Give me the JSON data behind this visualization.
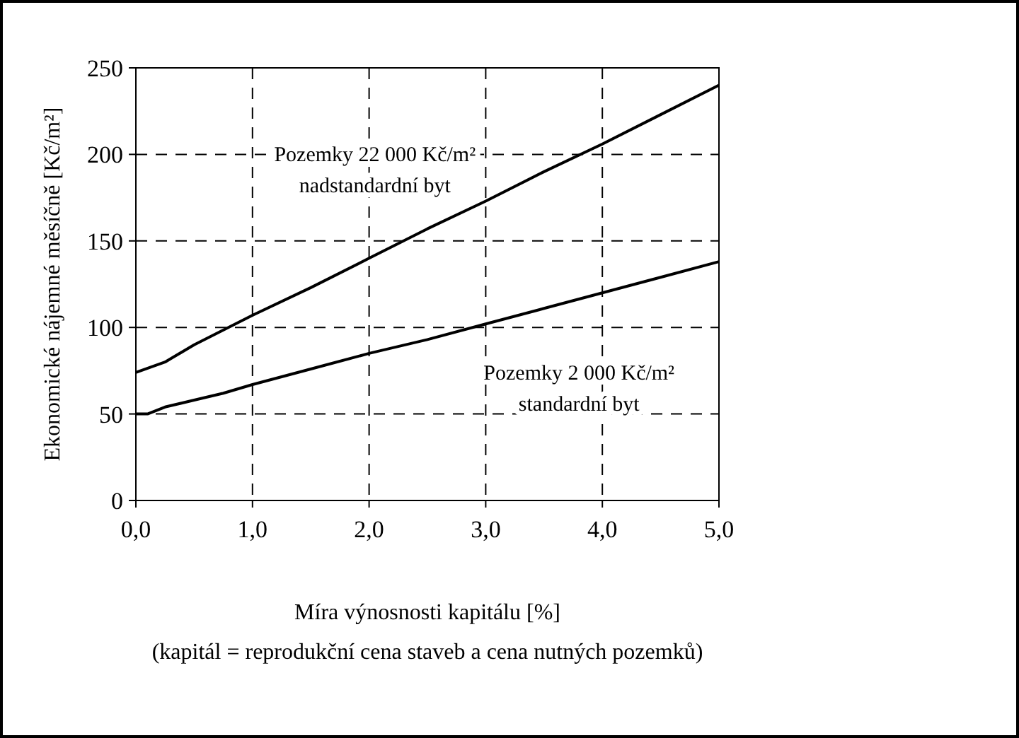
{
  "chart_data": {
    "type": "line",
    "xlabel": "Míra výnosnosti kapitálu   [%]",
    "ylabel": "Ekonomické nájemné měsíčně [Kč/m²]",
    "annotations": [
      "(kapitál = reprodukční cena staveb a cena nutných pozemků)"
    ],
    "xlim": [
      0,
      5
    ],
    "ylim": [
      0,
      250
    ],
    "xticks": [
      {
        "value": 0,
        "label": "0,0"
      },
      {
        "value": 1,
        "label": "1,0"
      },
      {
        "value": 2,
        "label": "2,0"
      },
      {
        "value": 3,
        "label": "3,0"
      },
      {
        "value": 4,
        "label": "4,0"
      },
      {
        "value": 5,
        "label": "5,0"
      }
    ],
    "yticks": [
      0,
      50,
      100,
      150,
      200,
      250
    ],
    "grid": true,
    "line_style": "solid",
    "series": [
      {
        "name": "Pozemky 22 000 Kč/m²\nnadstandardní byt",
        "color": "#000000",
        "x": [
          0,
          0.25,
          0.5,
          1,
          1.5,
          2,
          2.5,
          3,
          3.5,
          4,
          4.5,
          5
        ],
        "values": [
          74,
          80,
          90,
          107,
          123,
          140,
          157,
          173,
          190,
          206,
          223,
          240
        ]
      },
      {
        "name": "Pozemky 2 000 Kč/m²\nstandardní byt",
        "color": "#000000",
        "x": [
          0,
          0.1,
          0.25,
          0.5,
          0.75,
          1,
          1.5,
          2,
          2.5,
          3,
          3.5,
          4,
          4.5,
          5
        ],
        "values": [
          50,
          50,
          54,
          58,
          62,
          67,
          76,
          85,
          93,
          102,
          111,
          120,
          129,
          138
        ]
      }
    ]
  }
}
